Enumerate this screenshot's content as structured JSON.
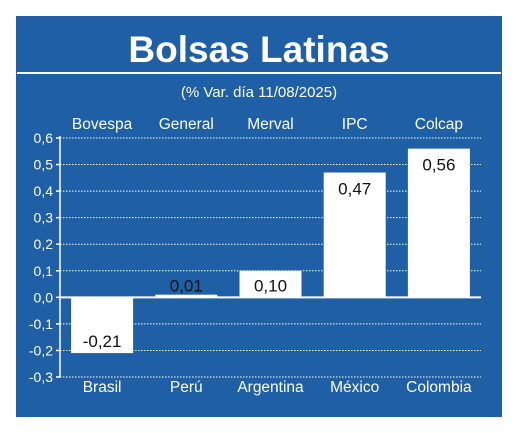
{
  "chart_data": {
    "type": "bar",
    "title": "Bolsas Latinas",
    "subtitle": "(% Var. día 11/08/2025)",
    "categories": [
      "Bovespa",
      "General",
      "Merval",
      "IPC",
      "Colcap"
    ],
    "countries": [
      "Brasil",
      "Perú",
      "Argentina",
      "México",
      "Colombia"
    ],
    "values": [
      -0.21,
      0.01,
      0.1,
      0.47,
      0.56
    ],
    "value_labels": [
      "-0,21",
      "0,01",
      "0,10",
      "0,47",
      "0,56"
    ],
    "ylim": [
      -0.3,
      0.6
    ],
    "yticks": [
      "-0,3",
      "-0,2",
      "-0,1",
      "0,0",
      "0,1",
      "0,2",
      "0,3",
      "0,4",
      "0,5",
      "0,6"
    ],
    "grid": true,
    "colors": {
      "background": "#1f5fa6",
      "bar": "#ffffff",
      "frame": "#ffffff",
      "label_on_blue": "#ffffff",
      "label_on_bar": "#111111"
    }
  }
}
